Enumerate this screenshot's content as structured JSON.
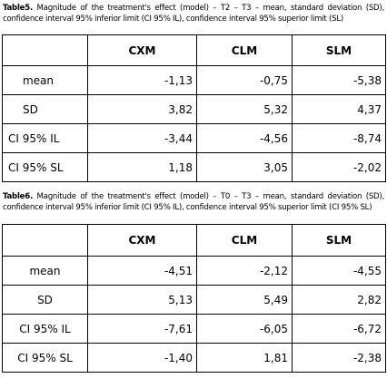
{
  "tables": [
    {
      "caption": {
        "label": "Table5.",
        "text": " Magnitude of the treatment's effect (model) – T2 – T3 – mean, standard deviation (SD), confidence interval 95% inferior limit (CI 95% IL), confidence interval 95% superior limit (SL)"
      },
      "columns": [
        "CXM",
        "CLM",
        "SLM"
      ],
      "rows": [
        {
          "label": "mean",
          "values": [
            "-1,13",
            "-0,75",
            "-5,38"
          ]
        },
        {
          "label": "SD",
          "values": [
            "3,82",
            "5,32",
            "4,37"
          ]
        },
        {
          "label": "CI 95% IL",
          "values": [
            "-3,44",
            "-4,56",
            "-8,74"
          ]
        },
        {
          "label": "CI 95% SL",
          "values": [
            "1,18",
            "3,05",
            "-2,02"
          ]
        }
      ]
    },
    {
      "caption": {
        "label": "Table6.",
        "text": " Magnitude of the treatment's effect (model) – T0 – T3 – mean, standard deviation (SD), confidence interval 95% inferior limit (CI 95% IL), confidence interval 95% superior limit (CI 95% SL)"
      },
      "columns": [
        "CXM",
        "CLM",
        "SLM"
      ],
      "rows": [
        {
          "label": "mean",
          "values": [
            "-4,51",
            "-2,12",
            "-4,55"
          ]
        },
        {
          "label": "SD",
          "values": [
            "5,13",
            "5,49",
            "2,82"
          ]
        },
        {
          "label": "CI 95% IL",
          "values": [
            "-7,61",
            "-6,05",
            "-6,72"
          ]
        },
        {
          "label": "CI 95% SL",
          "values": [
            "-1,40",
            "1,81",
            "-2,38"
          ]
        }
      ]
    }
  ]
}
